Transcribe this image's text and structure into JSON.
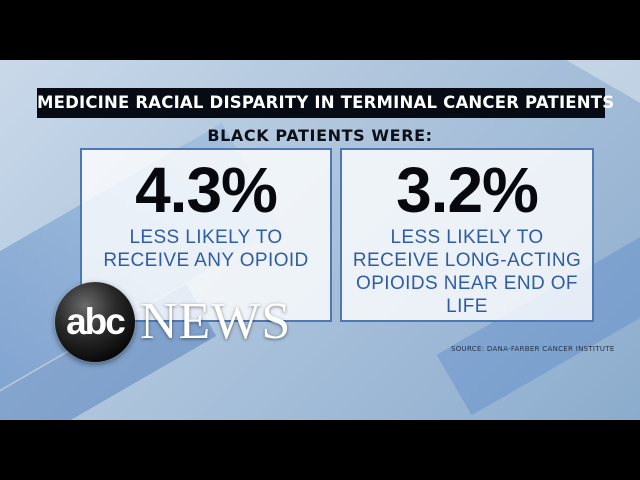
{
  "title": "MEDICINE RACIAL DISPARITY IN TERMINAL CANCER PATIENTS",
  "subheading": "BLACK PATIENTS WERE:",
  "stats": [
    {
      "value": "4.3%",
      "description": "LESS LIKELY TO RECEIVE ANY OPIOID"
    },
    {
      "value": "3.2%",
      "description": "LESS LIKELY TO RECEIVE LONG-ACTING OPIOIDS NEAR END OF LIFE"
    }
  ],
  "source": "SOURCE: DANA-FARBER CANCER INSTITUTE",
  "logo": {
    "abc": "abc",
    "news": "NEWS"
  },
  "colors": {
    "title_bar_bg": "#070b14",
    "box_border": "#4c78b4",
    "desc_text": "#2f5da3",
    "background": "#b3c8de"
  }
}
